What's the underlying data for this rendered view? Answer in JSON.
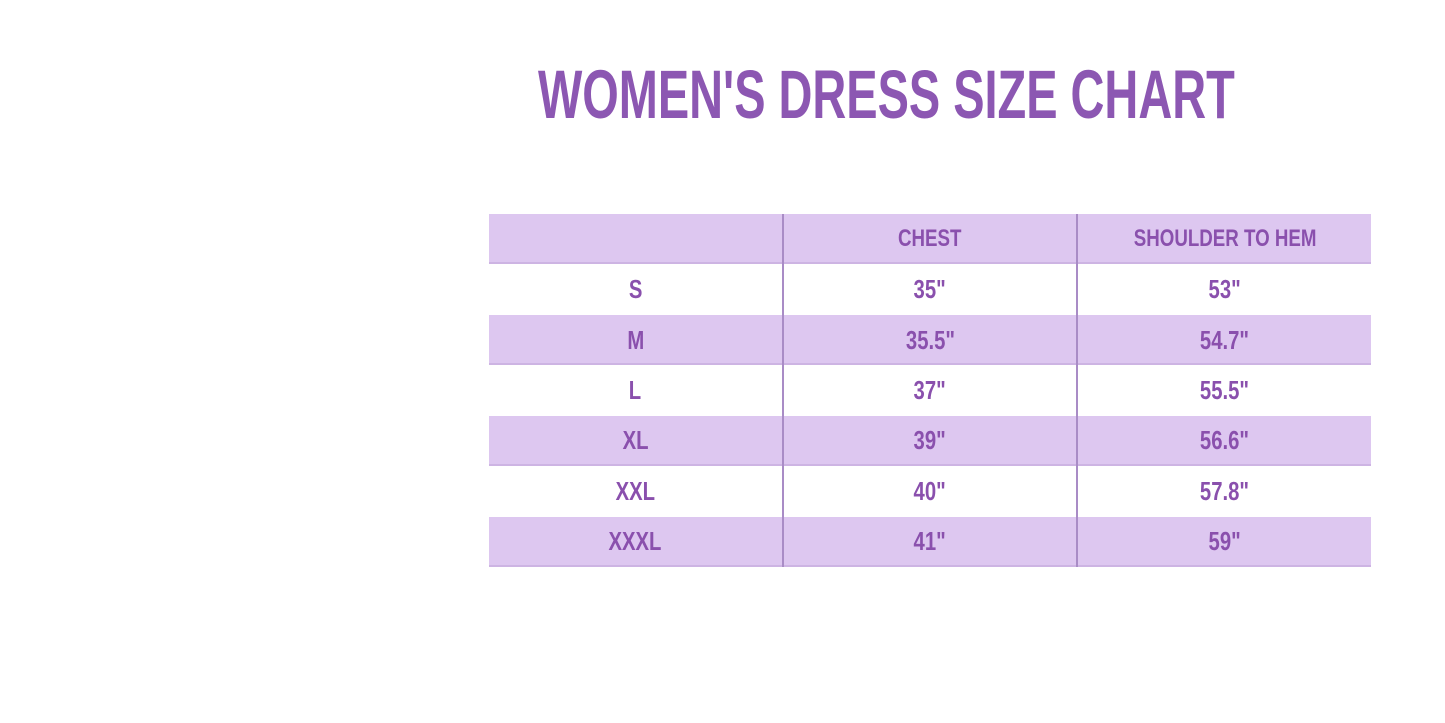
{
  "page": {
    "background": "#ffffff"
  },
  "title": "WOMEN'S DRESS SIZE CHART",
  "colors": {
    "page-bg": "#ffffff",
    "title-color": "#8c57b2",
    "text-color": "#8a50ad",
    "band": "#ddc7f0",
    "band-edge": "#cdb4e3",
    "divider": "#a98cc6"
  },
  "chart_data": {
    "type": "table",
    "title": "WOMEN'S DRESS SIZE CHART",
    "columns": [
      "",
      "CHEST",
      "SHOULDER TO HEM"
    ],
    "rows": [
      {
        "size": "S",
        "chest": "35\"",
        "shoulder_to_hem": "53\""
      },
      {
        "size": "M",
        "chest": "35.5\"",
        "shoulder_to_hem": "54.7\""
      },
      {
        "size": "L",
        "chest": "37\"",
        "shoulder_to_hem": "55.5\""
      },
      {
        "size": "XL",
        "chest": "39\"",
        "shoulder_to_hem": "56.6\""
      },
      {
        "size": "XXL",
        "chest": "40\"",
        "shoulder_to_hem": "57.8\""
      },
      {
        "size": "XXXL",
        "chest": "41\"",
        "shoulder_to_hem": "59\""
      }
    ],
    "layout": {
      "striped": true,
      "stripe_rows": [
        "header",
        "M",
        "XL",
        "XXXL"
      ],
      "column_dividers": true,
      "outer_border": false
    }
  }
}
